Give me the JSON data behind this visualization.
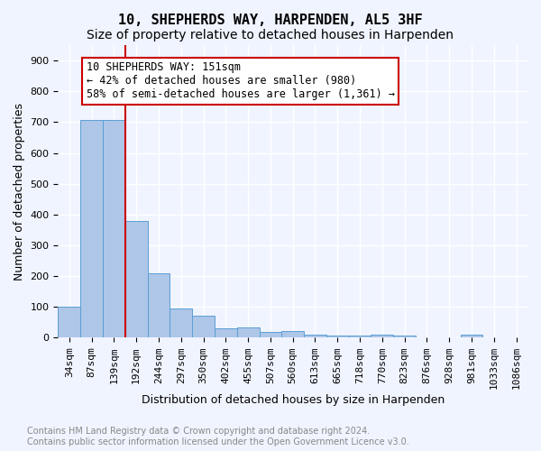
{
  "title": "10, SHEPHERDS WAY, HARPENDEN, AL5 3HF",
  "subtitle": "Size of property relative to detached houses in Harpenden",
  "xlabel": "Distribution of detached houses by size in Harpenden",
  "ylabel": "Number of detached properties",
  "categories": [
    "34sqm",
    "87sqm",
    "139sqm",
    "192sqm",
    "244sqm",
    "297sqm",
    "350sqm",
    "402sqm",
    "455sqm",
    "507sqm",
    "560sqm",
    "613sqm",
    "665sqm",
    "718sqm",
    "770sqm",
    "823sqm",
    "876sqm",
    "928sqm",
    "981sqm",
    "1033sqm",
    "1086sqm"
  ],
  "values": [
    100,
    707,
    707,
    378,
    208,
    95,
    72,
    30,
    33,
    20,
    22,
    10,
    8,
    8,
    9,
    8,
    0,
    0,
    10,
    0,
    0
  ],
  "bar_color": "#aec6e8",
  "bar_edge_color": "#5a9fd4",
  "property_line_x": 2,
  "property_line_color": "#cc0000",
  "annotation_text": "10 SHEPHERDS WAY: 151sqm\n← 42% of detached houses are smaller (980)\n58% of semi-detached houses are larger (1,361) →",
  "annotation_box_color": "#ffffff",
  "annotation_box_edge_color": "#cc0000",
  "ylim": [
    0,
    950
  ],
  "yticks": [
    0,
    100,
    200,
    300,
    400,
    500,
    600,
    700,
    800,
    900
  ],
  "background_color": "#f0f4ff",
  "grid_color": "#ffffff",
  "footer_text": "Contains HM Land Registry data © Crown copyright and database right 2024.\nContains public sector information licensed under the Open Government Licence v3.0.",
  "title_fontsize": 11,
  "subtitle_fontsize": 10,
  "axis_label_fontsize": 9,
  "tick_fontsize": 8,
  "annotation_fontsize": 8.5,
  "footer_fontsize": 7
}
